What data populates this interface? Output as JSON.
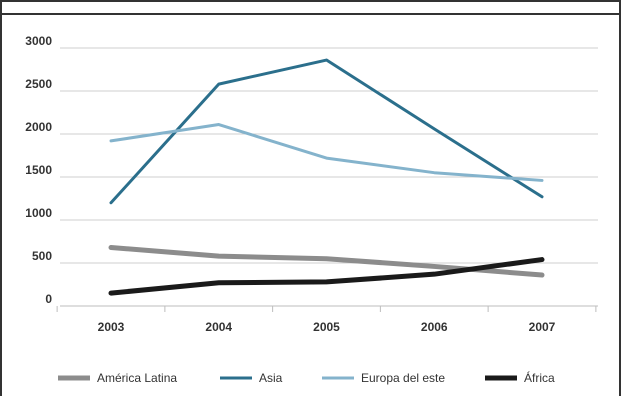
{
  "chart_data": {
    "type": "line",
    "title": "",
    "xlabel": "",
    "ylabel": "",
    "categories": [
      "2003",
      "2004",
      "2005",
      "2006",
      "2007"
    ],
    "y_ticks": [
      0,
      500,
      1000,
      1500,
      2000,
      2500,
      3000
    ],
    "y_tick_labels": [
      "0",
      "500",
      "1000",
      "1500",
      "2000",
      "2500",
      "3000"
    ],
    "ylim": [
      0,
      3000
    ],
    "grid": "horizontal",
    "legend_position": "bottom",
    "series": [
      {
        "name": "América Latina",
        "values": [
          680,
          580,
          550,
          460,
          360
        ],
        "color": "#8c8c8c"
      },
      {
        "name": "Asia",
        "values": [
          1200,
          2580,
          2860,
          2060,
          1270
        ],
        "color": "#2b6f8c"
      },
      {
        "name": "Europa del este",
        "values": [
          1920,
          2110,
          1720,
          1550,
          1460
        ],
        "color": "#84b3cc"
      },
      {
        "name": "África",
        "values": [
          150,
          270,
          280,
          370,
          540
        ],
        "color": "#1a1a1a"
      }
    ]
  }
}
